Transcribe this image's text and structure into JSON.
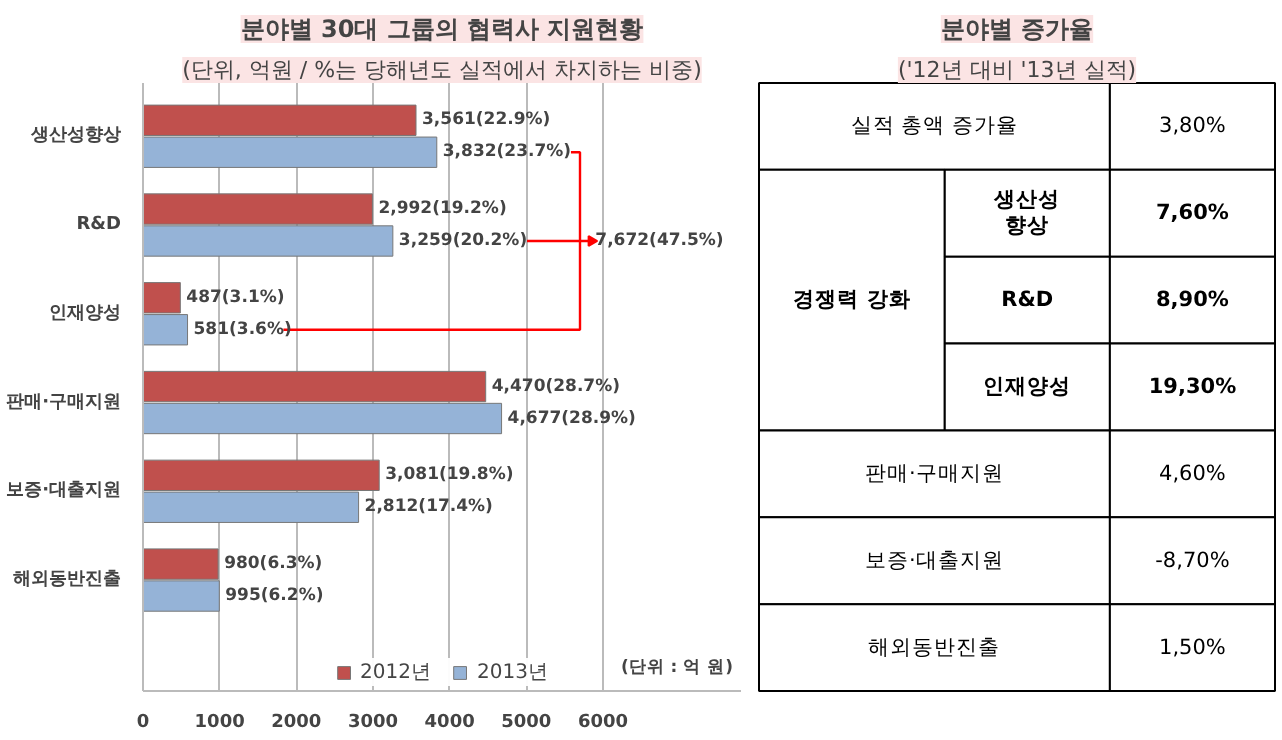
{
  "chart_data": [
    {
      "type": "bar",
      "orientation": "horizontal",
      "title": "분야별 30대 그룹의 협력사 지원현황",
      "subtitle": "(단위, 억원 / %는 당해년도 실적에서 차지하는 비중)",
      "categories": [
        "생산성향상",
        "R&D",
        "인재양성",
        "판매·구매지원",
        "보증·대출지원",
        "해외동반진출"
      ],
      "series": [
        {
          "name": "2012년",
          "color": "#c0504d",
          "values": [
            3561,
            2992,
            487,
            4470,
            3081,
            980
          ],
          "value_labels": [
            "3,561(22.9%)",
            "2,992(19.2%)",
            "487(3.1%)",
            "4,470(28.7%)",
            "3,081(19.8%)",
            "980(6.3%)"
          ]
        },
        {
          "name": "2013년",
          "color": "#95b3d7",
          "values": [
            3832,
            3259,
            581,
            4677,
            2812,
            995
          ],
          "value_labels": [
            "3,832(23.7%)",
            "3,259(20.2%)",
            "581(3.6%)",
            "4,677(28.9%)",
            "2,812(17.4%)",
            "995(6.2%)"
          ]
        }
      ],
      "xlim": [
        0,
        7800
      ],
      "xticks": [
        0,
        1000,
        2000,
        3000,
        4000,
        5000,
        6000
      ],
      "grid": "x",
      "legend": "bottom",
      "annotations": [
        "7,672(47.5%)",
        "(단위 : 억 원)"
      ]
    },
    {
      "type": "other",
      "title": "분야별 증가율",
      "subtitle": "('12년 대비 '13년 실적)",
      "annotations": [
        "실적 총액 증가율",
        "3,80%",
        "경쟁력 강화",
        "생산성 향상",
        "7,60%",
        "R&D",
        "8,90%",
        "인재양성",
        "19,30%",
        "판매·구매지원",
        "4,60%",
        "보증·대출지원",
        "-8,70%",
        "해외동반진출",
        "1,50%"
      ]
    }
  ]
}
